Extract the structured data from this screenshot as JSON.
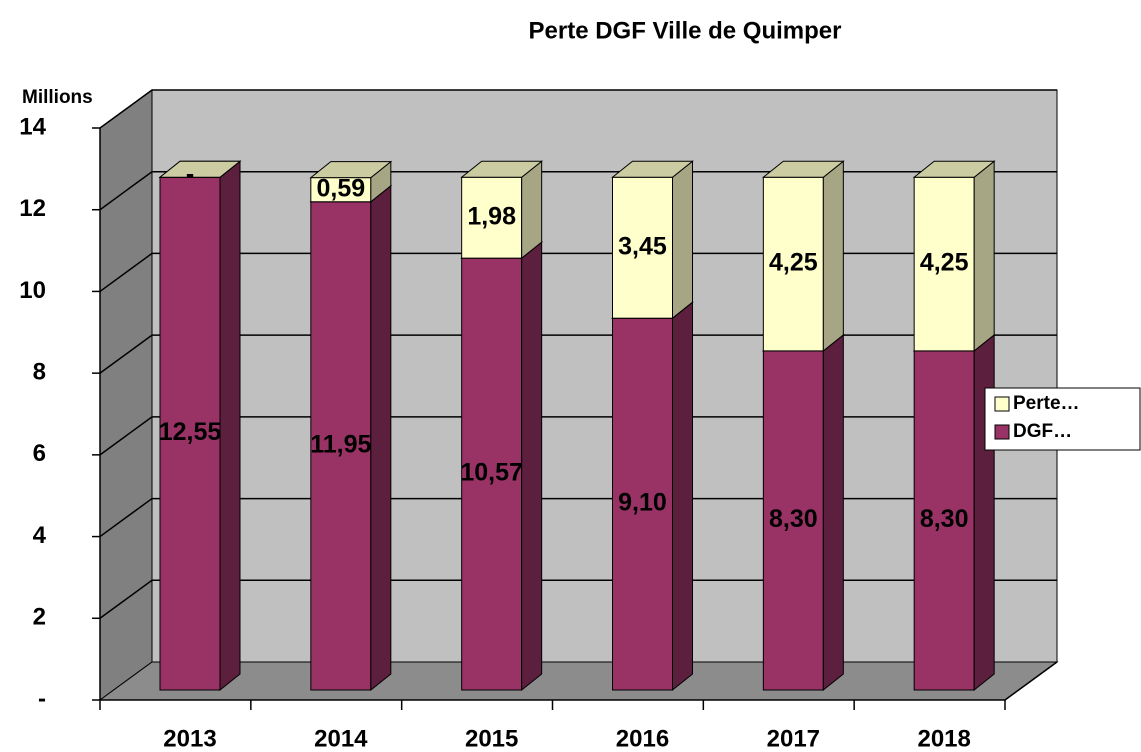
{
  "chart_data": {
    "type": "stacked_bar_3d",
    "title": "Perte DGF Ville de Quimper",
    "y_unit_label": "Millions",
    "categories": [
      "2013",
      "2014",
      "2015",
      "2016",
      "2017",
      "2018"
    ],
    "series": [
      {
        "name": "DGF…",
        "color": "#993366",
        "values": [
          12.55,
          11.95,
          10.57,
          9.1,
          8.3,
          8.3
        ],
        "value_labels": [
          "12,55",
          "11,95",
          "10,57",
          "9,10",
          "8,30",
          "8,30"
        ]
      },
      {
        "name": "Perte…",
        "color": "#ffffcc",
        "values": [
          0,
          0.59,
          1.98,
          3.45,
          4.25,
          4.25
        ],
        "value_labels": [
          "-",
          "0,59",
          "1,98",
          "3,45",
          "4,25",
          "4,25"
        ]
      }
    ],
    "ylim": [
      0,
      14
    ],
    "yticks": [
      {
        "value": 0,
        "label": "-"
      },
      2,
      4,
      6,
      8,
      10,
      12,
      14
    ],
    "grid": true
  }
}
